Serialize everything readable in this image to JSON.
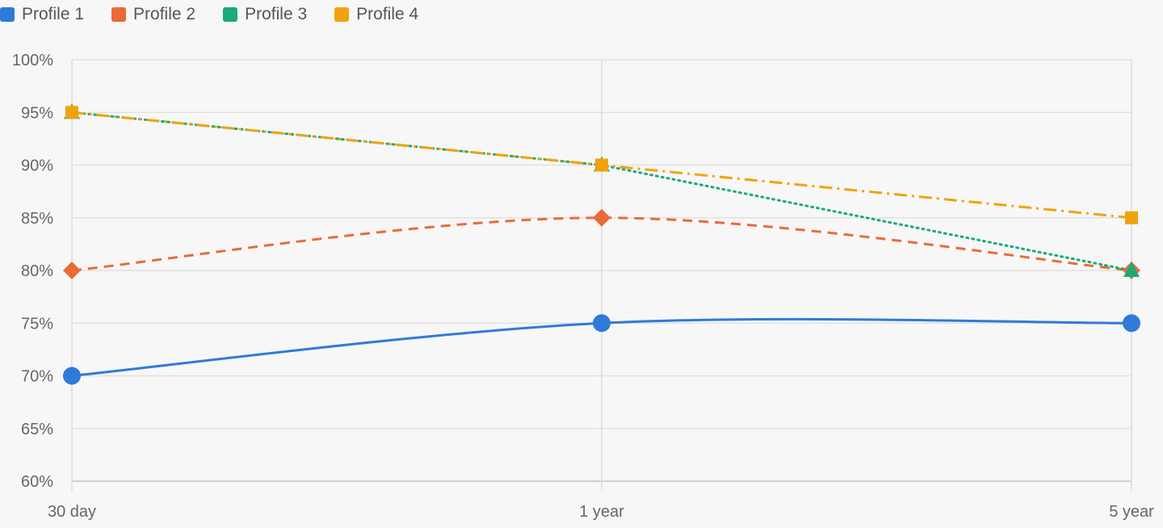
{
  "chart_data": {
    "type": "line",
    "categories": [
      "30 day",
      "1 year",
      "5 year"
    ],
    "yticks": [
      "60%",
      "65%",
      "70%",
      "75%",
      "80%",
      "85%",
      "90%",
      "95%",
      "100%"
    ],
    "ylim": [
      60,
      100
    ],
    "ystep": 5,
    "grid": true,
    "legend_position": "top-left",
    "series": [
      {
        "name": "Profile 1",
        "values": [
          70,
          75,
          75
        ],
        "color": "#2f7ad9",
        "dash": "solid",
        "marker": "circle"
      },
      {
        "name": "Profile 2",
        "values": [
          80,
          85,
          80
        ],
        "color": "#ec6a35",
        "dash": "dashed",
        "marker": "diamond"
      },
      {
        "name": "Profile 3",
        "values": [
          95,
          90,
          80
        ],
        "color": "#1aab76",
        "dash": "dotted",
        "marker": "triangle"
      },
      {
        "name": "Profile 4",
        "values": [
          95,
          90,
          85
        ],
        "color": "#f0a30a",
        "dash": "dash-dot",
        "marker": "square"
      }
    ]
  }
}
